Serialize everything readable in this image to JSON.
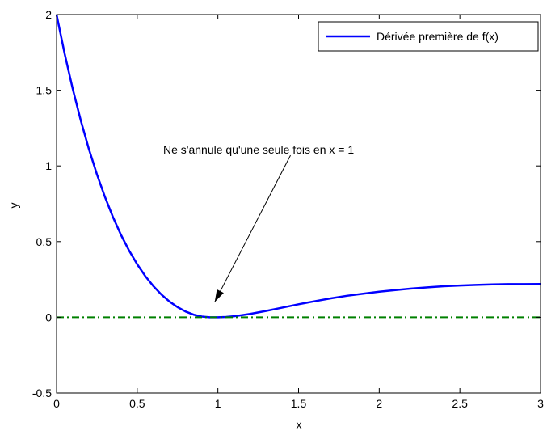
{
  "chart_data": {
    "type": "line",
    "title": "",
    "xlabel": "x",
    "ylabel": "y",
    "xlim": [
      0,
      3
    ],
    "ylim": [
      -0.5,
      2
    ],
    "grid": false,
    "x_ticks": [
      0,
      0.5,
      1,
      1.5,
      2,
      2.5,
      3
    ],
    "x_tick_labels": [
      "0",
      "0.5",
      "1",
      "1.5",
      "2",
      "2.5",
      "3"
    ],
    "y_ticks": [
      -0.5,
      0,
      0.5,
      1,
      1.5,
      2
    ],
    "y_tick_labels": [
      "-0.5",
      "0",
      "0.5",
      "1",
      "1.5",
      "2"
    ],
    "legend": {
      "position": "top-right",
      "entries": [
        "Dérivée première de f(x)"
      ]
    },
    "series": [
      {
        "name": "Dérivée première de f(x)",
        "color": "#0000ff",
        "style": "solid",
        "x": [
          0,
          0.05,
          0.1,
          0.15,
          0.2,
          0.25,
          0.3,
          0.35,
          0.4,
          0.45,
          0.5,
          0.55,
          0.6,
          0.65,
          0.7,
          0.75,
          0.8,
          0.85,
          0.9,
          0.95,
          1.0,
          1.05,
          1.1,
          1.15,
          1.2,
          1.3,
          1.4,
          1.5,
          1.6,
          1.7,
          1.8,
          1.9,
          2.0,
          2.1,
          2.2,
          2.3,
          2.4,
          2.5,
          2.6,
          2.7,
          2.8,
          2.9,
          3.0
        ],
        "y": [
          2.0,
          1.742,
          1.51,
          1.301,
          1.113,
          0.945,
          0.795,
          0.661,
          0.543,
          0.44,
          0.35,
          0.272,
          0.206,
          0.15,
          0.104,
          0.067,
          0.038,
          0.017,
          0.005,
          0.0,
          0.0,
          0.002,
          0.007,
          0.014,
          0.022,
          0.042,
          0.064,
          0.086,
          0.106,
          0.125,
          0.142,
          0.156,
          0.169,
          0.18,
          0.19,
          0.198,
          0.205,
          0.21,
          0.214,
          0.217,
          0.219,
          0.219,
          0.22
        ]
      },
      {
        "color": "#008000",
        "style": "dash-dot",
        "x": [
          0,
          3
        ],
        "y": [
          0,
          0
        ]
      }
    ],
    "annotations": [
      {
        "text": "Ne s'annule qu'une seule fois en x = 1",
        "arrow_to": [
          0.98,
          0.1
        ],
        "arrow_from": [
          1.45,
          1.07
        ]
      }
    ]
  }
}
